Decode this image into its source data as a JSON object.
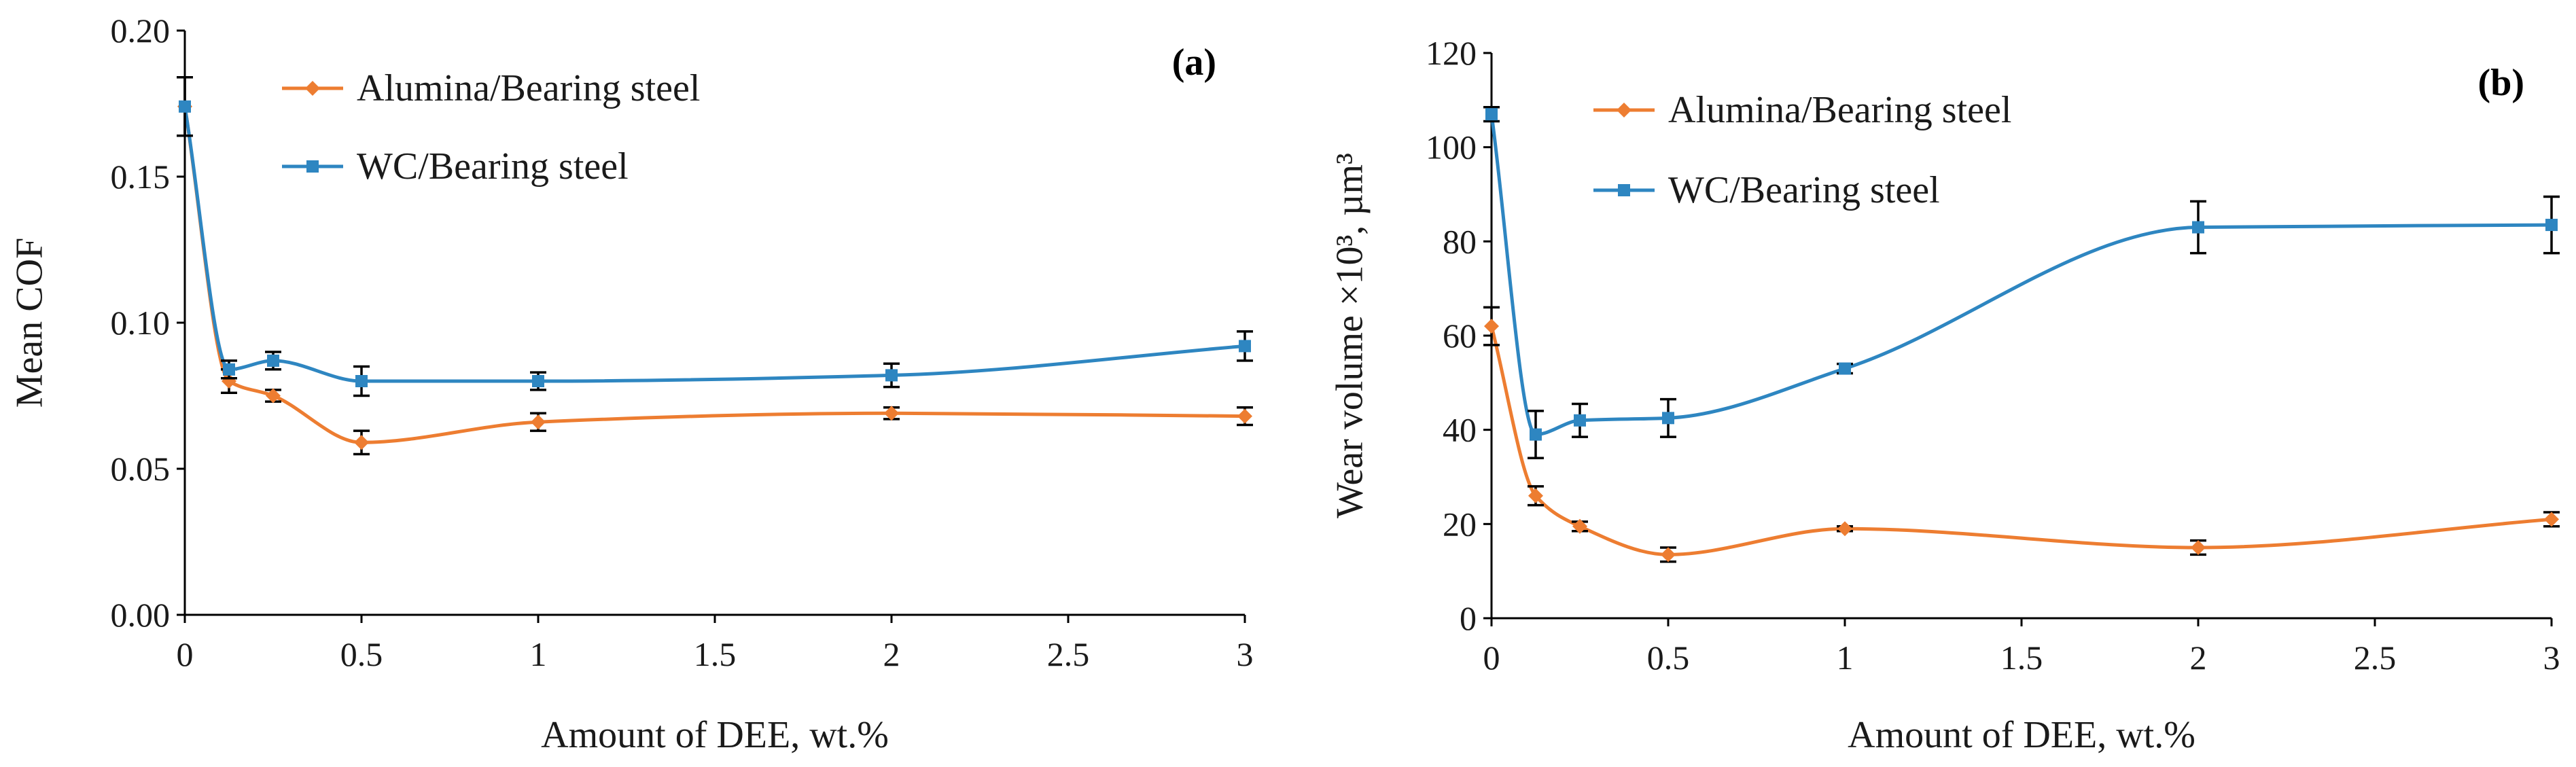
{
  "chart_data": [
    {
      "type": "line",
      "panel_label": "(a)",
      "xlabel": "Amount of DEE, wt.%",
      "ylabel": "Mean COF",
      "xlim": [
        0,
        3
      ],
      "ylim": [
        0,
        0.2
      ],
      "xticks": [
        0,
        0.5,
        1,
        1.5,
        2,
        2.5,
        3
      ],
      "xtick_labels": [
        "0",
        "0.5",
        "1",
        "1.5",
        "2",
        "2.5",
        "3"
      ],
      "yticks": [
        0,
        0.05,
        0.1,
        0.15,
        0.2
      ],
      "ytick_labels": [
        "0.00",
        "0.05",
        "0.10",
        "0.15",
        "0.20"
      ],
      "legend_position": "top-left",
      "series": [
        {
          "name": "Alumina/Bearing steel",
          "color": "#ed7d31",
          "marker": "diamond",
          "x": [
            0,
            0.125,
            0.25,
            0.5,
            1,
            2,
            3
          ],
          "y": [
            0.174,
            0.08,
            0.075,
            0.059,
            0.066,
            0.069,
            0.068
          ],
          "err": [
            0.01,
            0.004,
            0.002,
            0.004,
            0.003,
            0.002,
            0.003
          ]
        },
        {
          "name": "WC/Bearing steel",
          "color": "#2e86c1",
          "marker": "square",
          "x": [
            0,
            0.125,
            0.25,
            0.5,
            1,
            2,
            3
          ],
          "y": [
            0.174,
            0.084,
            0.087,
            0.08,
            0.08,
            0.082,
            0.092
          ],
          "err": [
            0.01,
            0.003,
            0.003,
            0.005,
            0.003,
            0.004,
            0.005
          ]
        }
      ]
    },
    {
      "type": "line",
      "panel_label": "(b)",
      "xlabel": "Amount of DEE, wt.%",
      "ylabel": "Wear volume ×10³, µm³",
      "xlim": [
        0,
        3
      ],
      "ylim": [
        0,
        120
      ],
      "xticks": [
        0,
        0.5,
        1,
        1.5,
        2,
        2.5,
        3
      ],
      "xtick_labels": [
        "0",
        "0.5",
        "1",
        "1.5",
        "2",
        "2.5",
        "3"
      ],
      "yticks": [
        0,
        20,
        40,
        60,
        80,
        100,
        120
      ],
      "ytick_labels": [
        "0",
        "20",
        "40",
        "60",
        "80",
        "100",
        "120"
      ],
      "legend_position": "top-left",
      "series": [
        {
          "name": "Alumina/Bearing steel",
          "color": "#ed7d31",
          "marker": "diamond",
          "x": [
            0,
            0.125,
            0.25,
            0.5,
            1,
            2,
            3
          ],
          "y": [
            62,
            26,
            19.5,
            13.5,
            19,
            15,
            21
          ],
          "err": [
            4,
            2,
            1,
            1.5,
            0.5,
            1.5,
            1.5
          ]
        },
        {
          "name": "WC/Bearing steel",
          "color": "#2e86c1",
          "marker": "square",
          "x": [
            0,
            0.125,
            0.25,
            0.5,
            1,
            2,
            3
          ],
          "y": [
            107,
            39,
            42,
            42.5,
            53,
            83,
            83.5
          ],
          "err": [
            1.5,
            5,
            3.5,
            4,
            1,
            5.5,
            6
          ]
        }
      ]
    }
  ]
}
